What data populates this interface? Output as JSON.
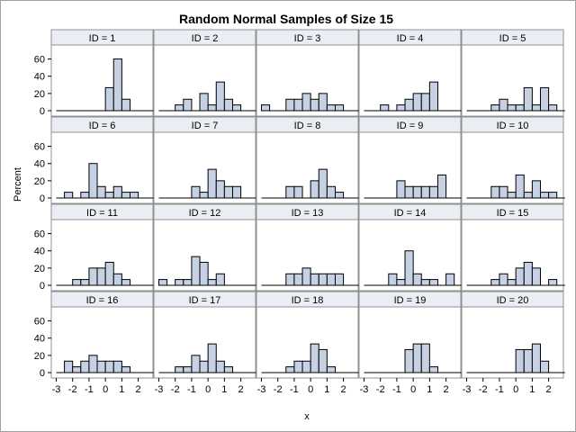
{
  "chart_data": {
    "type": "bar",
    "title": "Random Normal Samples of Size 15",
    "xlabel": "x",
    "ylabel": "Percent",
    "xlim": [
      -3.3,
      2.9
    ],
    "ylim": [
      0,
      70
    ],
    "x_ticks": [
      -3,
      -2,
      -1,
      0,
      1,
      2
    ],
    "y_ticks": [
      0,
      20,
      40,
      60
    ],
    "bin_width": 0.5,
    "bin_starts": [
      -3.0,
      -2.5,
      -2.0,
      -1.5,
      -1.0,
      -0.5,
      0.0,
      0.5,
      1.0,
      1.5,
      2.0,
      2.5
    ],
    "grid": false,
    "colors": {
      "bar_fill": "#c6d2e3",
      "bar_stroke": "#000000",
      "header_fill": "#eaeef4",
      "panel_border": "#909090"
    },
    "panels": [
      {
        "label": "ID = 1",
        "values": [
          0,
          0,
          0,
          0,
          0,
          0,
          26.7,
          60,
          13.3,
          0,
          0,
          0
        ]
      },
      {
        "label": "ID = 2",
        "values": [
          0,
          0,
          6.7,
          13.3,
          0,
          20,
          6.7,
          33.3,
          13.3,
          6.7,
          0,
          0
        ]
      },
      {
        "label": "ID = 3",
        "values": [
          6.7,
          0,
          0,
          13.3,
          13.3,
          20,
          13.3,
          20,
          6.7,
          6.7,
          0,
          0
        ]
      },
      {
        "label": "ID = 4",
        "values": [
          0,
          0,
          6.7,
          0,
          6.7,
          13.3,
          20,
          20,
          33.3,
          0,
          0,
          0
        ]
      },
      {
        "label": "ID = 5",
        "values": [
          0,
          0,
          0,
          6.7,
          13.3,
          6.7,
          6.7,
          26.7,
          6.7,
          26.7,
          6.7,
          0
        ]
      },
      {
        "label": "ID = 6",
        "values": [
          0,
          6.7,
          0,
          6.7,
          40,
          13.3,
          6.7,
          13.3,
          6.7,
          6.7,
          0,
          0
        ]
      },
      {
        "label": "ID = 7",
        "values": [
          0,
          0,
          0,
          0,
          13.3,
          6.7,
          33.3,
          20,
          13.3,
          13.3,
          0,
          0
        ]
      },
      {
        "label": "ID = 8",
        "values": [
          0,
          0,
          0,
          13.3,
          13.3,
          0,
          20,
          33.3,
          13.3,
          6.7,
          0,
          0
        ]
      },
      {
        "label": "ID = 9",
        "values": [
          0,
          0,
          0,
          0,
          20,
          13.3,
          13.3,
          13.3,
          13.3,
          26.7,
          0,
          0
        ]
      },
      {
        "label": "ID = 10",
        "values": [
          0,
          0,
          0,
          13.3,
          13.3,
          6.7,
          26.7,
          6.7,
          20,
          6.7,
          6.7,
          0
        ]
      },
      {
        "label": "ID = 11",
        "values": [
          0,
          0,
          6.7,
          6.7,
          20,
          20,
          26.7,
          13.3,
          6.7,
          0,
          0,
          0
        ]
      },
      {
        "label": "ID = 12",
        "values": [
          6.7,
          0,
          6.7,
          6.7,
          33.3,
          26.7,
          6.7,
          13.3,
          0,
          0,
          0,
          0
        ]
      },
      {
        "label": "ID = 13",
        "values": [
          0,
          0,
          0,
          13.3,
          13.3,
          20,
          13.3,
          13.3,
          13.3,
          13.3,
          0,
          0
        ]
      },
      {
        "label": "ID = 14",
        "values": [
          0,
          0,
          0,
          13.3,
          6.7,
          40,
          13.3,
          6.7,
          6.7,
          0,
          13.3,
          0
        ]
      },
      {
        "label": "ID = 15",
        "values": [
          0,
          0,
          0,
          6.7,
          13.3,
          6.7,
          20,
          26.7,
          20,
          0,
          6.7,
          0
        ]
      },
      {
        "label": "ID = 16",
        "values": [
          0,
          13.3,
          6.7,
          13.3,
          20,
          13.3,
          13.3,
          13.3,
          6.7,
          0,
          0,
          0
        ]
      },
      {
        "label": "ID = 17",
        "values": [
          0,
          0,
          6.7,
          6.7,
          20,
          13.3,
          33.3,
          13.3,
          6.7,
          0,
          0,
          0
        ]
      },
      {
        "label": "ID = 18",
        "values": [
          0,
          0,
          0,
          6.7,
          13.3,
          13.3,
          33.3,
          26.7,
          6.7,
          0,
          0,
          0
        ]
      },
      {
        "label": "ID = 19",
        "values": [
          0,
          0,
          0,
          0,
          0,
          26.7,
          33.3,
          33.3,
          6.7,
          0,
          0,
          0
        ]
      },
      {
        "label": "ID = 20",
        "values": [
          0,
          0,
          0,
          0,
          0,
          0,
          26.7,
          26.7,
          33.3,
          13.3,
          0,
          0
        ]
      }
    ]
  }
}
